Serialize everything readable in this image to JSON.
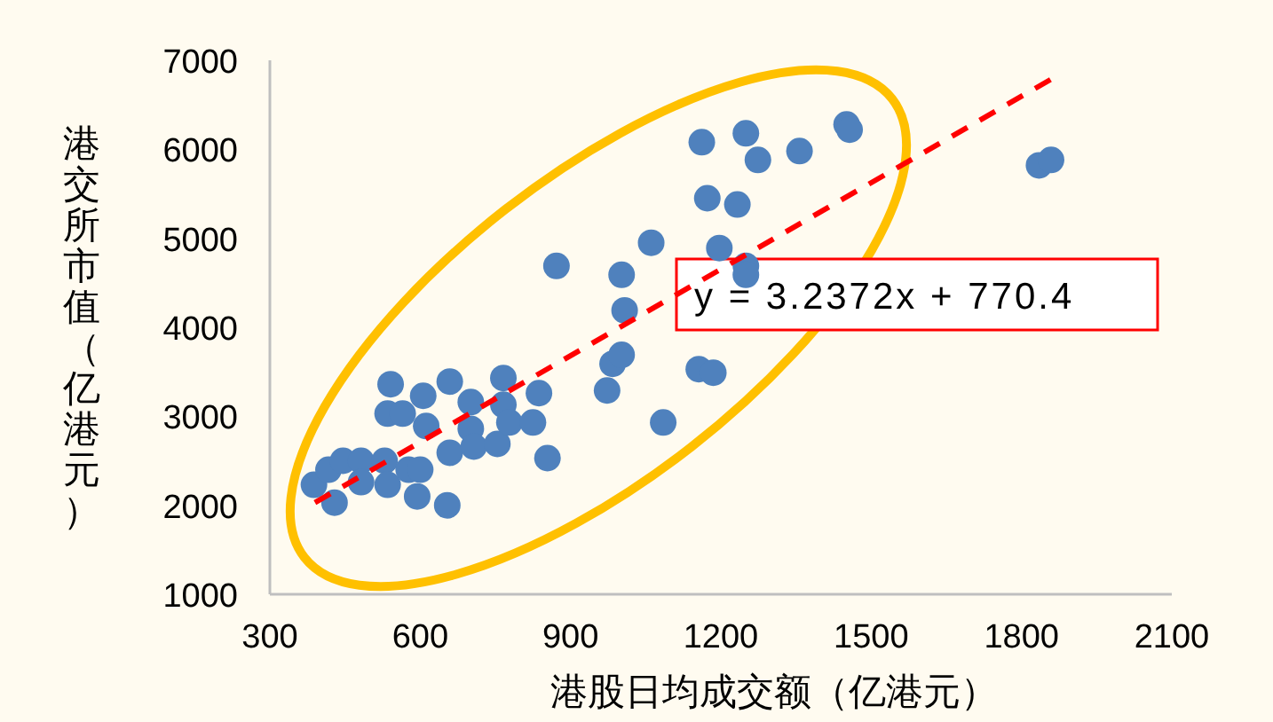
{
  "chart_data": {
    "type": "scatter",
    "xlabel": "港股日均成交额（亿港元）",
    "ylabel": "港交所市值（亿港元）",
    "xlim": [
      300,
      2100
    ],
    "ylim": [
      1000,
      7000
    ],
    "xticks": [
      300,
      600,
      900,
      1200,
      1500,
      1800,
      2100
    ],
    "yticks": [
      1000,
      2000,
      3000,
      4000,
      5000,
      6000,
      7000
    ],
    "grid": false,
    "series": [
      {
        "marker": "circle",
        "color": "#4f81bd",
        "x": [
          388,
          429,
          417,
          446,
          482,
          482,
          529,
          535,
          541,
          535,
          565,
          577,
          594,
          600,
          606,
          612,
          654,
          659,
          659,
          701,
          701,
          707,
          754,
          766,
          766,
          778,
          825,
          837,
          854,
          872,
          973,
          984,
          1002,
          1002,
          1008,
          1061,
          1085,
          1156,
          1162,
          1173,
          1250,
          1274,
          1357,
          1451,
          1457,
          1233,
          1197,
          1250,
          1250,
          1185,
          1835,
          1859
        ],
        "values": [
          2230,
          2030,
          2400,
          2500,
          2500,
          2260,
          2500,
          2230,
          3360,
          3030,
          3030,
          2400,
          2100,
          2400,
          3230,
          2890,
          2000,
          3390,
          2590,
          3160,
          2860,
          2660,
          2690,
          3430,
          3130,
          2930,
          2930,
          3260,
          2530,
          4690,
          3290,
          3590,
          3690,
          4590,
          4190,
          4950,
          2930,
          3530,
          6080,
          5450,
          6180,
          5880,
          5980,
          6280,
          6220,
          5380,
          4890,
          4690,
          4590,
          3490,
          5820,
          5880
        ]
      },
      {
        "type": "line",
        "color": "#ff0000",
        "line_style": "dashed",
        "x": [
          390,
          1860
        ],
        "values": [
          2030,
          6790
        ]
      }
    ],
    "annotations": [
      "y = 3.2372x + 770.4"
    ]
  }
}
